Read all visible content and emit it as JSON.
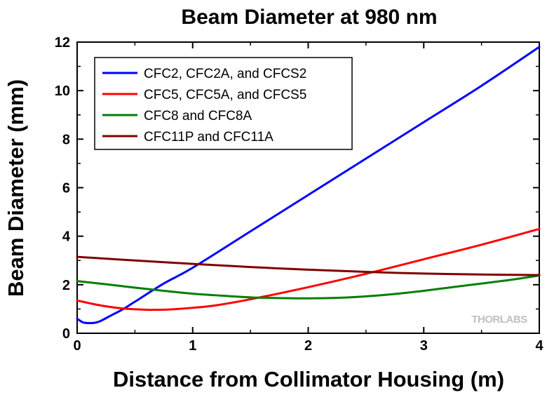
{
  "chart_data": {
    "type": "line",
    "title": "Beam Diameter at 980 nm",
    "xlabel": "Distance from Collimator Housing (m)",
    "ylabel": "Beam Diameter (mm)",
    "xlim": [
      0,
      4
    ],
    "ylim": [
      0,
      12
    ],
    "xticks": [
      "0",
      "1",
      "2",
      "3",
      "4"
    ],
    "yticks": [
      "0",
      "2",
      "4",
      "6",
      "8",
      "10",
      "12"
    ],
    "grid": false,
    "legend_position": "top-left",
    "watermark": "THORLABS",
    "series": [
      {
        "name": "CFC2, CFC2A, and CFCS2",
        "color": "#0000ff",
        "x": [
          0,
          0.05,
          0.1,
          0.15,
          0.2,
          0.3,
          0.4,
          0.5,
          0.75,
          1.0,
          1.5,
          2.0,
          2.5,
          3.0,
          3.5,
          4.0
        ],
        "y": [
          0.6,
          0.45,
          0.42,
          0.43,
          0.5,
          0.75,
          1.0,
          1.3,
          2.05,
          2.7,
          4.2,
          5.7,
          7.2,
          8.7,
          10.2,
          11.8
        ]
      },
      {
        "name": "CFC5, CFC5A, and CFCS5",
        "color": "#ff0000",
        "x": [
          0,
          0.2,
          0.4,
          0.6,
          0.7,
          0.8,
          1.0,
          1.2,
          1.5,
          2.0,
          2.5,
          3.0,
          3.5,
          4.0
        ],
        "y": [
          1.35,
          1.15,
          1.02,
          0.97,
          0.97,
          0.98,
          1.05,
          1.15,
          1.4,
          1.9,
          2.45,
          3.05,
          3.65,
          4.3
        ]
      },
      {
        "name": "CFC8 and CFC8A",
        "color": "#008000",
        "x": [
          0,
          0.25,
          0.5,
          0.75,
          1.0,
          1.25,
          1.5,
          1.75,
          2.0,
          2.25,
          2.5,
          2.75,
          3.0,
          3.25,
          3.5,
          3.75,
          4.0
        ],
        "y": [
          2.15,
          2.02,
          1.88,
          1.75,
          1.63,
          1.55,
          1.48,
          1.45,
          1.44,
          1.46,
          1.52,
          1.62,
          1.75,
          1.9,
          2.05,
          2.2,
          2.38
        ]
      },
      {
        "name": "CFC11P and CFC11A",
        "color": "#800000",
        "x": [
          0,
          0.5,
          1.0,
          1.5,
          2.0,
          2.5,
          3.0,
          3.5,
          4.0
        ],
        "y": [
          3.15,
          3.0,
          2.86,
          2.73,
          2.62,
          2.53,
          2.46,
          2.42,
          2.4
        ]
      }
    ]
  }
}
